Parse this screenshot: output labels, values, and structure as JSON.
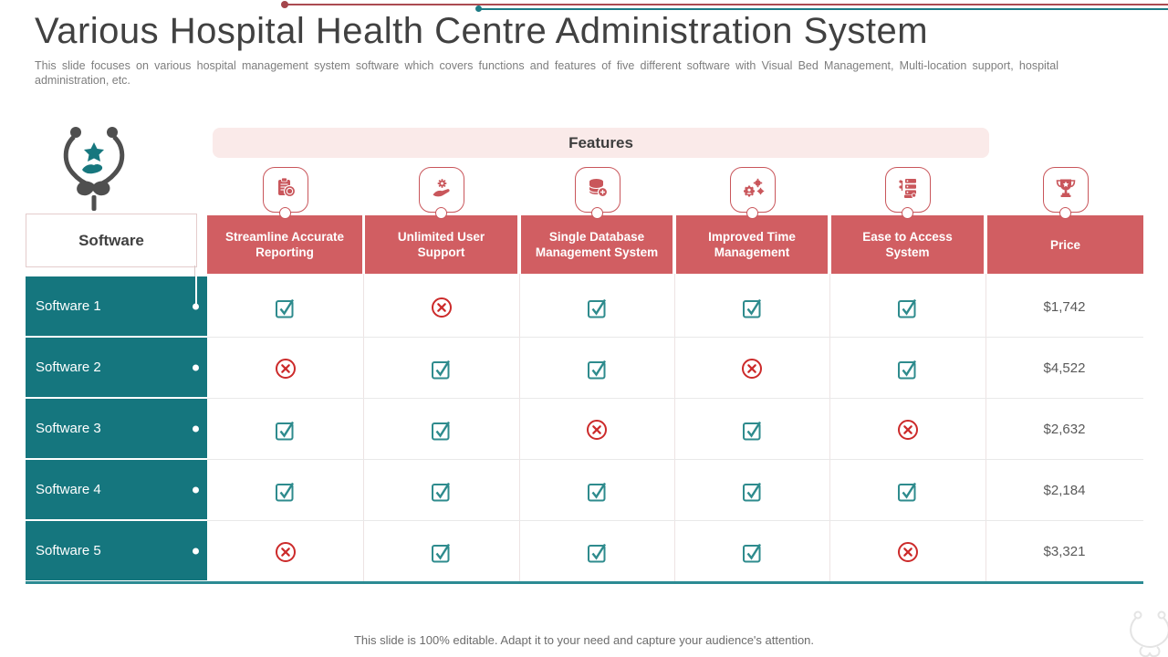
{
  "title": "Various Hospital Health Centre Administration System",
  "subtitle": {
    "line1": "This slide focuses on various hospital management system software which covers functions and features of five different software with Visual Bed Management, Multi-location support, hospital",
    "line2": "administration, etc."
  },
  "footer": "This slide is 100% editable. Adapt it to your need and capture your audience's attention.",
  "table": {
    "features_label": "Features",
    "software_label": "Software",
    "columns": [
      {
        "label": "Streamline Accurate Reporting",
        "icon": "clipboard-coin-icon"
      },
      {
        "label": "Unlimited User Support",
        "icon": "hand-gear-icon"
      },
      {
        "label": "Single Database Management System",
        "icon": "database-add-icon"
      },
      {
        "label": "Improved Time Management",
        "icon": "gears-user-icon"
      },
      {
        "label": "Ease to Access System",
        "icon": "server-checklist-icon"
      },
      {
        "label": "Price",
        "icon": "trophy-icon"
      }
    ],
    "rows": [
      {
        "name": "Software 1",
        "features": [
          true,
          false,
          true,
          true,
          true
        ],
        "price": "$1,742"
      },
      {
        "name": "Software 2",
        "features": [
          false,
          true,
          true,
          false,
          true
        ],
        "price": "$4,522"
      },
      {
        "name": "Software 3",
        "features": [
          true,
          true,
          false,
          true,
          false
        ],
        "price": "$2,632"
      },
      {
        "name": "Software 4",
        "features": [
          true,
          true,
          true,
          true,
          true
        ],
        "price": "$2,184"
      },
      {
        "name": "Software 5",
        "features": [
          false,
          true,
          true,
          true,
          false
        ],
        "price": "$3,321"
      }
    ]
  },
  "colors": {
    "accent_red": "#c9565b",
    "header_bg": "#d15e62",
    "band_pink": "#faeae9",
    "teal": "#15767e",
    "check": "#2e8b8d",
    "cross": "#cc2a2a",
    "line_red": "#ab4b51",
    "line_teal": "#1d7b85"
  }
}
